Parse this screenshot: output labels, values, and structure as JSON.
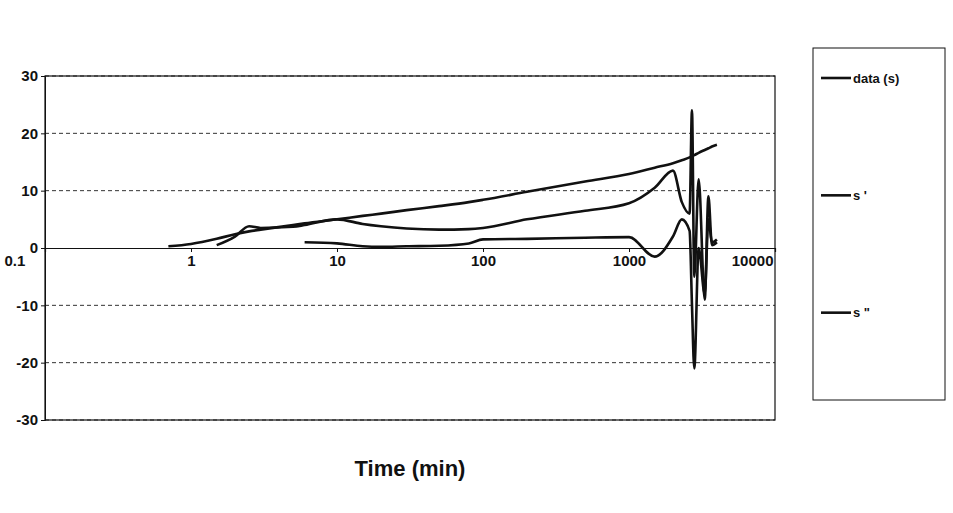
{
  "chart_data": {
    "type": "line",
    "x_label": "Time (min)",
    "x": [
      0.7,
      1,
      1.5,
      2,
      2.5,
      3,
      5,
      6,
      10,
      15,
      20,
      30,
      50,
      80,
      100,
      200,
      500,
      1000,
      1500,
      2000,
      2300,
      2600,
      2700,
      2800,
      3000,
      3300,
      3500,
      3700,
      4000
    ],
    "series": [
      {
        "name": "data (s)",
        "color": "#111111",
        "values": [
          0.3,
          0.7,
          1.6,
          2.4,
          2.9,
          3.2,
          4.0,
          4.3,
          5.0,
          5.6,
          6.0,
          6.6,
          7.3,
          8.0,
          8.4,
          9.8,
          11.6,
          12.9,
          14.0,
          14.8,
          15.3,
          15.8,
          16.0,
          16.2,
          16.6,
          17.1,
          17.4,
          17.7,
          18.0
        ]
      },
      {
        "name": "s '",
        "color": "#111111",
        "values": [
          null,
          null,
          0.5,
          2.0,
          3.8,
          3.5,
          3.7,
          4.0,
          5.0,
          4.2,
          3.8,
          3.4,
          3.2,
          3.3,
          3.5,
          5.0,
          6.5,
          7.8,
          10.5,
          13.5,
          8.0,
          6.0,
          24.0,
          -5.0,
          12.0,
          -9.0,
          9.0,
          0.5,
          1.0
        ]
      },
      {
        "name": "s \"",
        "color": "#111111",
        "values": [
          null,
          null,
          null,
          null,
          null,
          null,
          null,
          1.0,
          0.8,
          0.3,
          0.2,
          0.3,
          0.4,
          0.8,
          1.5,
          1.6,
          1.8,
          1.9,
          -1.5,
          2.0,
          5.0,
          3.0,
          -10.0,
          -21.0,
          0.0,
          -8.0,
          5.0,
          1.0,
          1.5
        ]
      }
    ],
    "xlim": [
      0.1,
      10000
    ],
    "xticks": [
      0.1,
      1,
      10,
      100,
      1000,
      10000
    ],
    "ylim": [
      -30,
      30
    ],
    "yticks": [
      -30,
      -20,
      -10,
      0,
      10,
      20,
      30
    ],
    "log": "x",
    "grid": true,
    "legend": "right"
  }
}
